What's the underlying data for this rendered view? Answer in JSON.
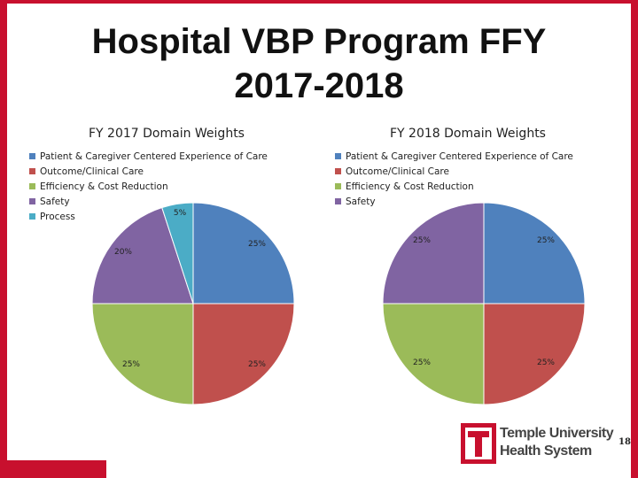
{
  "slide": {
    "title_line1": "Hospital VBP Program FFY",
    "title_line2": "2017-2018",
    "page_number": "18",
    "logo_line1": "Temple University",
    "logo_line2": "Health System"
  },
  "colors": {
    "blue": "#4f81bd",
    "red": "#c0504d",
    "green": "#9bbb59",
    "purple": "#8064a2",
    "teal": "#4bacc6",
    "accent": "#c8102e"
  },
  "chart_data": [
    {
      "type": "pie",
      "title": "FY 2017 Domain Weights",
      "categories": [
        "Patient & Caregiver Centered Experience of Care",
        "Outcome/Clinical Care",
        "Efficiency & Cost Reduction",
        "Safety",
        "Process"
      ],
      "values": [
        25,
        25,
        25,
        20,
        5
      ],
      "labels": [
        "25%",
        "25%",
        "25%",
        "20%",
        "5%"
      ],
      "colors": [
        "#4f81bd",
        "#c0504d",
        "#9bbb59",
        "#8064a2",
        "#4bacc6"
      ],
      "legend": "top-left"
    },
    {
      "type": "pie",
      "title": "FY 2018 Domain Weights",
      "categories": [
        "Patient & Caregiver Centered Experience of Care",
        "Outcome/Clinical Care",
        "Efficiency & Cost Reduction",
        "Safety"
      ],
      "values": [
        25,
        25,
        25,
        25
      ],
      "labels": [
        "25%",
        "25%",
        "25%",
        "25%"
      ],
      "colors": [
        "#4f81bd",
        "#c0504d",
        "#9bbb59",
        "#8064a2"
      ],
      "legend": "top-left"
    }
  ]
}
